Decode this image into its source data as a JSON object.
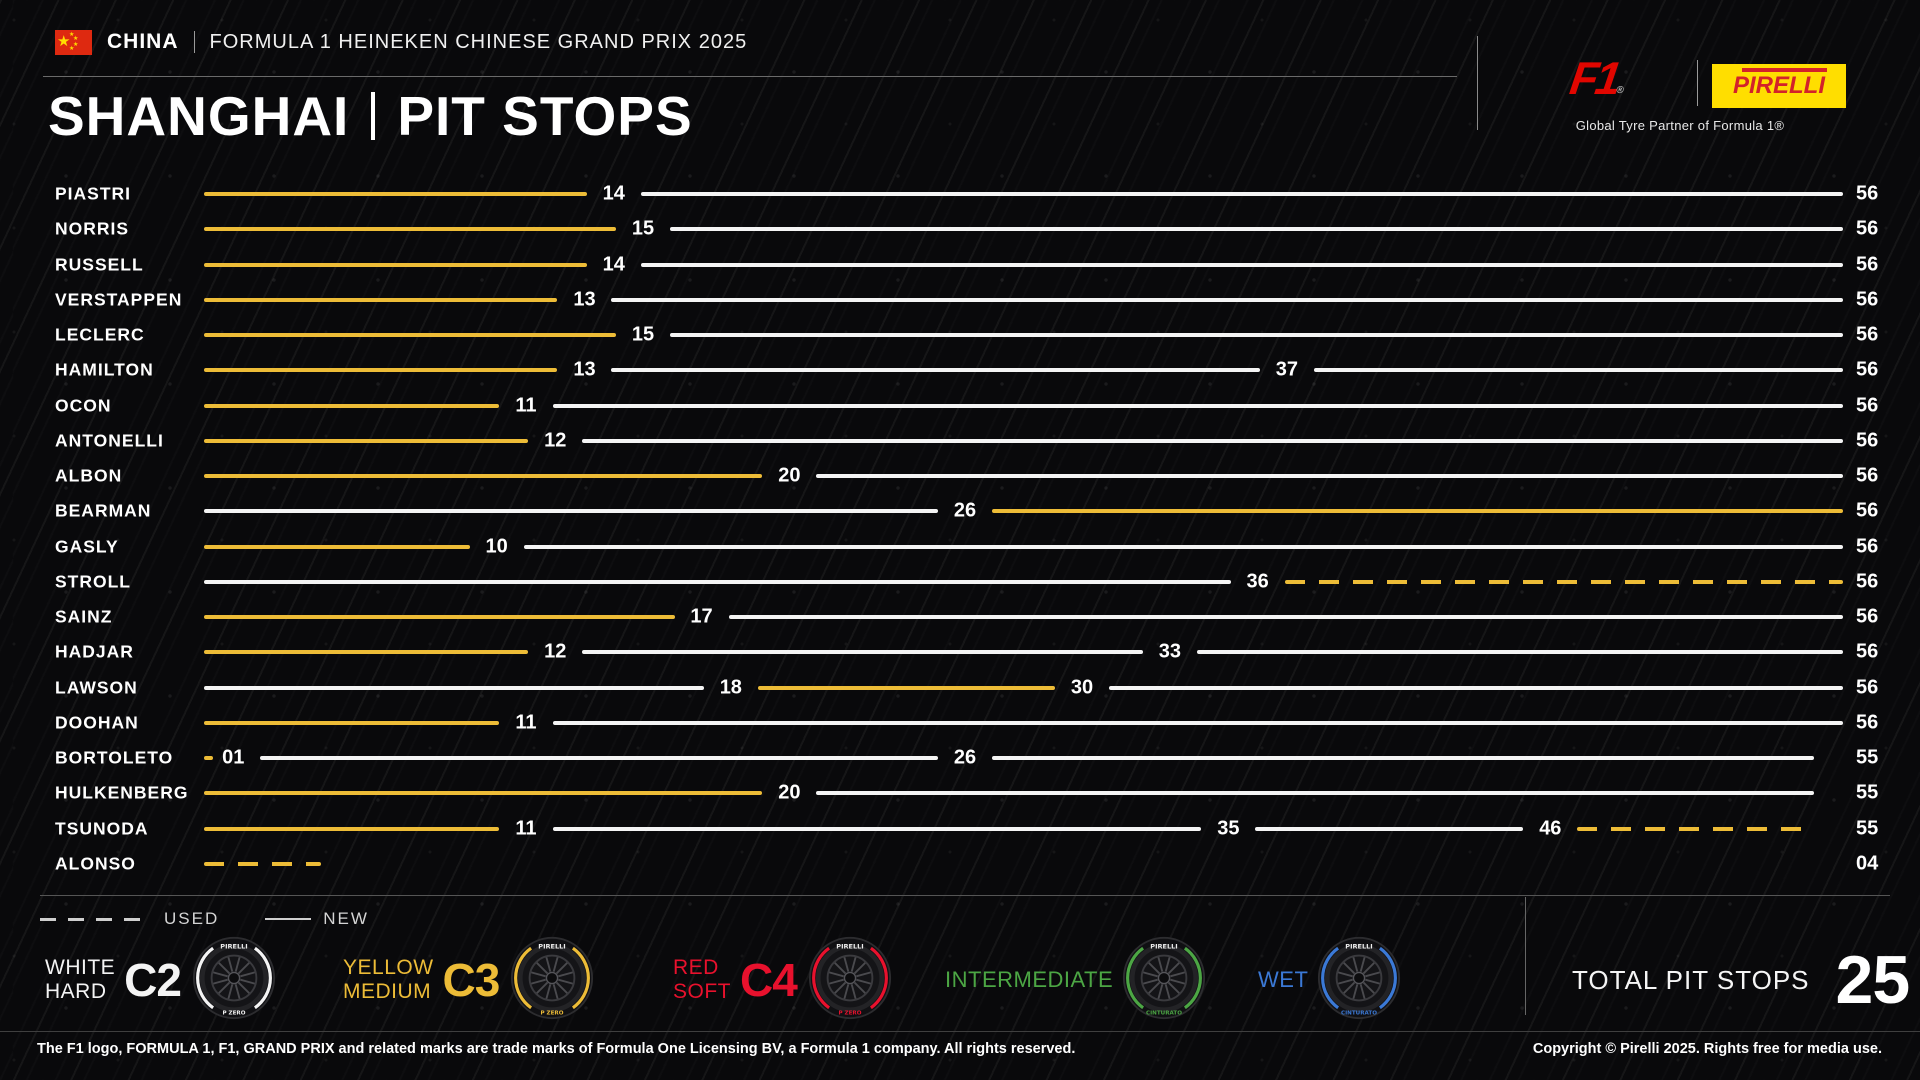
{
  "header": {
    "country": "CHINA",
    "event_title": "FORMULA 1 HEINEKEN CHINESE GRAND PRIX 2025",
    "title_location": "SHANGHAI",
    "title_topic": "PIT STOPS",
    "f1_logo_text": "F1",
    "f1_reg_mark": "®",
    "pirelli_logo_text": "PIRELLI",
    "partner_caption": "Global Tyre Partner of Formula 1®"
  },
  "chart_data": {
    "type": "timeline",
    "title": "SHANGHAI | PIT STOPS",
    "lap_range": [
      0,
      56
    ],
    "drivers": [
      {
        "name": "PIASTRI",
        "finish": "56",
        "stints": [
          {
            "compound": "medium",
            "used": false,
            "from": 0,
            "to": 14,
            "label": "14"
          },
          {
            "compound": "hard",
            "used": false,
            "from": 14,
            "to": 56
          }
        ]
      },
      {
        "name": "NORRIS",
        "finish": "56",
        "stints": [
          {
            "compound": "medium",
            "used": false,
            "from": 0,
            "to": 15,
            "label": "15"
          },
          {
            "compound": "hard",
            "used": false,
            "from": 15,
            "to": 56
          }
        ]
      },
      {
        "name": "RUSSELL",
        "finish": "56",
        "stints": [
          {
            "compound": "medium",
            "used": false,
            "from": 0,
            "to": 14,
            "label": "14"
          },
          {
            "compound": "hard",
            "used": false,
            "from": 14,
            "to": 56
          }
        ]
      },
      {
        "name": "VERSTAPPEN",
        "finish": "56",
        "stints": [
          {
            "compound": "medium",
            "used": false,
            "from": 0,
            "to": 13,
            "label": "13"
          },
          {
            "compound": "hard",
            "used": false,
            "from": 13,
            "to": 56
          }
        ]
      },
      {
        "name": "LECLERC",
        "finish": "56",
        "stints": [
          {
            "compound": "medium",
            "used": false,
            "from": 0,
            "to": 15,
            "label": "15"
          },
          {
            "compound": "hard",
            "used": false,
            "from": 15,
            "to": 56
          }
        ]
      },
      {
        "name": "HAMILTON",
        "finish": "56",
        "stints": [
          {
            "compound": "medium",
            "used": false,
            "from": 0,
            "to": 13,
            "label": "13"
          },
          {
            "compound": "hard",
            "used": false,
            "from": 13,
            "to": 37,
            "label": "37"
          },
          {
            "compound": "hard",
            "used": false,
            "from": 37,
            "to": 56
          }
        ]
      },
      {
        "name": "OCON",
        "finish": "56",
        "stints": [
          {
            "compound": "medium",
            "used": false,
            "from": 0,
            "to": 11,
            "label": "11"
          },
          {
            "compound": "hard",
            "used": false,
            "from": 11,
            "to": 56
          }
        ]
      },
      {
        "name": "ANTONELLI",
        "finish": "56",
        "stints": [
          {
            "compound": "medium",
            "used": false,
            "from": 0,
            "to": 12,
            "label": "12"
          },
          {
            "compound": "hard",
            "used": false,
            "from": 12,
            "to": 56
          }
        ]
      },
      {
        "name": "ALBON",
        "finish": "56",
        "stints": [
          {
            "compound": "medium",
            "used": false,
            "from": 0,
            "to": 20,
            "label": "20"
          },
          {
            "compound": "hard",
            "used": false,
            "from": 20,
            "to": 56
          }
        ]
      },
      {
        "name": "BEARMAN",
        "finish": "56",
        "stints": [
          {
            "compound": "hard",
            "used": false,
            "from": 0,
            "to": 26,
            "label": "26"
          },
          {
            "compound": "medium",
            "used": false,
            "from": 26,
            "to": 56
          }
        ]
      },
      {
        "name": "GASLY",
        "finish": "56",
        "stints": [
          {
            "compound": "medium",
            "used": false,
            "from": 0,
            "to": 10,
            "label": "10"
          },
          {
            "compound": "hard",
            "used": false,
            "from": 10,
            "to": 56
          }
        ]
      },
      {
        "name": "STROLL",
        "finish": "56",
        "stints": [
          {
            "compound": "hard",
            "used": false,
            "from": 0,
            "to": 36,
            "label": "36"
          },
          {
            "compound": "medium",
            "used": true,
            "from": 36,
            "to": 56
          }
        ]
      },
      {
        "name": "SAINZ",
        "finish": "56",
        "stints": [
          {
            "compound": "medium",
            "used": false,
            "from": 0,
            "to": 17,
            "label": "17"
          },
          {
            "compound": "hard",
            "used": false,
            "from": 17,
            "to": 56
          }
        ]
      },
      {
        "name": "HADJAR",
        "finish": "56",
        "stints": [
          {
            "compound": "medium",
            "used": false,
            "from": 0,
            "to": 12,
            "label": "12"
          },
          {
            "compound": "hard",
            "used": false,
            "from": 12,
            "to": 33,
            "label": "33"
          },
          {
            "compound": "hard",
            "used": false,
            "from": 33,
            "to": 56
          }
        ]
      },
      {
        "name": "LAWSON",
        "finish": "56",
        "stints": [
          {
            "compound": "hard",
            "used": false,
            "from": 0,
            "to": 18,
            "label": "18"
          },
          {
            "compound": "medium",
            "used": false,
            "from": 18,
            "to": 30,
            "label": "30"
          },
          {
            "compound": "hard",
            "used": false,
            "from": 30,
            "to": 56
          }
        ]
      },
      {
        "name": "DOOHAN",
        "finish": "56",
        "stints": [
          {
            "compound": "medium",
            "used": false,
            "from": 0,
            "to": 11,
            "label": "11"
          },
          {
            "compound": "hard",
            "used": false,
            "from": 11,
            "to": 56
          }
        ]
      },
      {
        "name": "BORTOLETO",
        "finish": "55",
        "stints": [
          {
            "compound": "medium",
            "used": true,
            "from": 0,
            "to": 1,
            "label": "01"
          },
          {
            "compound": "hard",
            "used": false,
            "from": 1,
            "to": 26,
            "label": "26"
          },
          {
            "compound": "hard",
            "used": false,
            "from": 26,
            "to": 55
          }
        ]
      },
      {
        "name": "HULKENBERG",
        "finish": "55",
        "stints": [
          {
            "compound": "medium",
            "used": false,
            "from": 0,
            "to": 20,
            "label": "20"
          },
          {
            "compound": "hard",
            "used": false,
            "from": 20,
            "to": 55
          }
        ]
      },
      {
        "name": "TSUNODA",
        "finish": "55",
        "stints": [
          {
            "compound": "medium",
            "used": false,
            "from": 0,
            "to": 11,
            "label": "11"
          },
          {
            "compound": "hard",
            "used": false,
            "from": 11,
            "to": 35,
            "label": "35"
          },
          {
            "compound": "hard",
            "used": false,
            "from": 35,
            "to": 46,
            "label": "46"
          },
          {
            "compound": "medium",
            "used": true,
            "from": 46,
            "to": 55
          }
        ]
      },
      {
        "name": "ALONSO",
        "finish": "04",
        "stints": [
          {
            "compound": "medium",
            "used": true,
            "from": 0,
            "to": 4
          }
        ]
      }
    ]
  },
  "legend": {
    "used_label": "USED",
    "new_label": "NEW",
    "compound_colors": {
      "hard": "#F4F4F4",
      "medium": "#EDBC37",
      "soft": "#E8112D",
      "intermediate": "#4CA644",
      "wet": "#3B79D6"
    },
    "compounds": [
      {
        "lines": [
          "WHITE",
          "HARD"
        ],
        "code": "C2",
        "compound": "hard",
        "wheel_text_top": "PIRELLI",
        "wheel_text_bottom": "P ZERO"
      },
      {
        "lines": [
          "YELLOW",
          "MEDIUM"
        ],
        "code": "C3",
        "compound": "medium",
        "wheel_text_top": "PIRELLI",
        "wheel_text_bottom": "P ZERO"
      },
      {
        "lines": [
          "RED",
          "SOFT"
        ],
        "code": "C4",
        "compound": "soft",
        "wheel_text_top": "PIRELLI",
        "wheel_text_bottom": "P ZERO"
      },
      {
        "lines": [
          "INTERMEDIATE"
        ],
        "code": "",
        "compound": "intermediate",
        "wheel_text_top": "PIRELLI",
        "wheel_text_bottom": "CINTURATO"
      },
      {
        "lines": [
          "WET"
        ],
        "code": "",
        "compound": "wet",
        "wheel_text_top": "PIRELLI",
        "wheel_text_bottom": "CINTURATO"
      }
    ]
  },
  "total": {
    "label": "TOTAL PIT STOPS",
    "value": "25"
  },
  "footer": {
    "left": "The F1 logo, FORMULA 1, F1, GRAND PRIX and related marks are trade marks of Formula One Licensing BV, a Formula 1 company. All rights reserved.",
    "right": "Copyright © Pirelli 2025. Rights free for media use."
  }
}
